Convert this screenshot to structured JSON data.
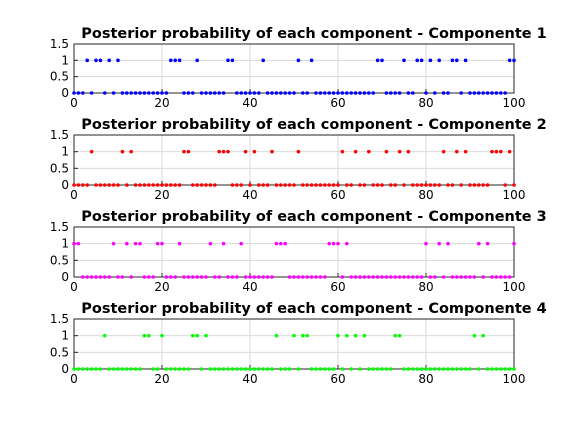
{
  "chart_data": [
    {
      "type": "scatter",
      "title": "Posterior probability of each component - Componente 1",
      "color": "#0000ff",
      "xlim": [
        0,
        100
      ],
      "ylim": [
        0,
        1.5
      ],
      "xticks": [
        "0",
        "20",
        "40",
        "60",
        "80",
        "100"
      ],
      "yticks": [
        "0",
        "0.5",
        "1",
        "1.5"
      ],
      "grid": true,
      "x": [
        0,
        1,
        2,
        3,
        4,
        5,
        6,
        7,
        8,
        9,
        10,
        11,
        12,
        13,
        14,
        15,
        16,
        17,
        18,
        19,
        20,
        21,
        22,
        23,
        24,
        25,
        26,
        27,
        28,
        29,
        30,
        31,
        32,
        33,
        34,
        35,
        36,
        37,
        38,
        39,
        40,
        41,
        42,
        43,
        44,
        45,
        46,
        47,
        48,
        49,
        50,
        51,
        52,
        53,
        54,
        55,
        56,
        57,
        58,
        59,
        60,
        61,
        62,
        63,
        64,
        65,
        66,
        67,
        68,
        69,
        70,
        71,
        72,
        73,
        74,
        75,
        76,
        77,
        78,
        79,
        80,
        81,
        82,
        83,
        84,
        85,
        86,
        87,
        88,
        89,
        90,
        91,
        92,
        93,
        94,
        95,
        96,
        97,
        98,
        99,
        100
      ],
      "values": [
        0,
        0,
        0,
        1,
        0,
        1,
        1,
        0,
        1,
        0,
        1,
        0,
        0,
        0,
        0,
        0,
        0,
        0,
        0,
        0,
        0,
        0,
        1,
        1,
        1,
        0,
        0,
        0,
        1,
        0,
        0,
        0,
        0,
        0,
        0,
        1,
        1,
        0,
        0,
        0,
        0,
        0,
        0,
        1,
        0,
        0,
        0,
        0,
        0,
        0,
        0,
        1,
        0,
        0,
        1,
        0,
        0,
        0,
        0,
        0,
        0,
        0,
        0,
        0,
        0,
        0,
        0,
        0,
        0,
        1,
        1,
        0,
        0,
        0,
        0,
        1,
        0,
        0,
        1,
        1,
        0,
        1,
        0,
        1,
        0,
        0,
        1,
        1,
        0,
        1,
        0,
        0,
        0,
        0,
        0,
        0,
        0,
        0,
        0,
        1,
        1
      ]
    },
    {
      "type": "scatter",
      "title": "Posterior probability of each component - Componente 2",
      "color": "#ff0000",
      "xlim": [
        0,
        100
      ],
      "ylim": [
        0,
        1.5
      ],
      "xticks": [
        "0",
        "20",
        "40",
        "60",
        "80",
        "100"
      ],
      "yticks": [
        "0",
        "0.5",
        "1",
        "1.5"
      ],
      "grid": true,
      "x": [
        0,
        1,
        2,
        3,
        4,
        5,
        6,
        7,
        8,
        9,
        10,
        11,
        12,
        13,
        14,
        15,
        16,
        17,
        18,
        19,
        20,
        21,
        22,
        23,
        24,
        25,
        26,
        27,
        28,
        29,
        30,
        31,
        32,
        33,
        34,
        35,
        36,
        37,
        38,
        39,
        40,
        41,
        42,
        43,
        44,
        45,
        46,
        47,
        48,
        49,
        50,
        51,
        52,
        53,
        54,
        55,
        56,
        57,
        58,
        59,
        60,
        61,
        62,
        63,
        64,
        65,
        66,
        67,
        68,
        69,
        70,
        71,
        72,
        73,
        74,
        75,
        76,
        77,
        78,
        79,
        80,
        81,
        82,
        83,
        84,
        85,
        86,
        87,
        88,
        89,
        90,
        91,
        92,
        93,
        94,
        95,
        96,
        97,
        98,
        99,
        100
      ],
      "values": [
        0,
        0,
        0,
        0,
        1,
        0,
        0,
        0,
        0,
        0,
        0,
        1,
        0,
        1,
        0,
        0,
        0,
        0,
        0,
        0,
        0,
        0,
        0,
        0,
        0,
        1,
        1,
        0,
        0,
        0,
        0,
        0,
        0,
        1,
        1,
        1,
        0,
        0,
        0,
        1,
        0,
        1,
        0,
        0,
        0,
        1,
        0,
        0,
        0,
        0,
        0,
        1,
        0,
        0,
        0,
        0,
        0,
        0,
        0,
        0,
        0,
        1,
        0,
        0,
        1,
        0,
        0,
        1,
        0,
        0,
        0,
        1,
        0,
        0,
        1,
        0,
        1,
        0,
        0,
        0,
        0,
        0,
        0,
        0,
        1,
        0,
        0,
        1,
        0,
        1,
        0,
        0,
        0,
        0,
        0,
        1,
        1,
        1,
        0,
        1,
        0
      ]
    },
    {
      "type": "scatter",
      "title": "Posterior probability of each component - Componente 3",
      "color": "#ff00ff",
      "xlim": [
        0,
        100
      ],
      "ylim": [
        0,
        1.5
      ],
      "xticks": [
        "0",
        "20",
        "40",
        "60",
        "80",
        "100"
      ],
      "yticks": [
        "0",
        "0.5",
        "1",
        "1.5"
      ],
      "grid": true,
      "x": [
        0,
        1,
        2,
        3,
        4,
        5,
        6,
        7,
        8,
        9,
        10,
        11,
        12,
        13,
        14,
        15,
        16,
        17,
        18,
        19,
        20,
        21,
        22,
        23,
        24,
        25,
        26,
        27,
        28,
        29,
        30,
        31,
        32,
        33,
        34,
        35,
        36,
        37,
        38,
        39,
        40,
        41,
        42,
        43,
        44,
        45,
        46,
        47,
        48,
        49,
        50,
        51,
        52,
        53,
        54,
        55,
        56,
        57,
        58,
        59,
        60,
        61,
        62,
        63,
        64,
        65,
        66,
        67,
        68,
        69,
        70,
        71,
        72,
        73,
        74,
        75,
        76,
        77,
        78,
        79,
        80,
        81,
        82,
        83,
        84,
        85,
        86,
        87,
        88,
        89,
        90,
        91,
        92,
        93,
        94,
        95,
        96,
        97,
        98,
        99,
        100
      ],
      "values": [
        1,
        1,
        0,
        0,
        0,
        0,
        0,
        0,
        0,
        1,
        0,
        0,
        1,
        0,
        1,
        1,
        0,
        0,
        0,
        1,
        1,
        0,
        0,
        0,
        1,
        0,
        0,
        0,
        0,
        0,
        0,
        1,
        0,
        0,
        1,
        0,
        0,
        0,
        1,
        0,
        0,
        0,
        0,
        0,
        0,
        0,
        1,
        1,
        1,
        0,
        0,
        0,
        0,
        0,
        0,
        0,
        0,
        0,
        1,
        1,
        1,
        0,
        1,
        0,
        0,
        0,
        0,
        0,
        0,
        0,
        0,
        0,
        0,
        0,
        0,
        0,
        0,
        0,
        0,
        0,
        1,
        0,
        0,
        1,
        0,
        1,
        0,
        0,
        0,
        0,
        0,
        0,
        1,
        0,
        1,
        0,
        0,
        0,
        0,
        0,
        1
      ]
    },
    {
      "type": "scatter",
      "title": "Posterior probability of each component - Componente 4",
      "color": "#00ff00",
      "xlim": [
        0,
        100
      ],
      "ylim": [
        0,
        1.5
      ],
      "xticks": [
        "0",
        "20",
        "40",
        "60",
        "80",
        "100"
      ],
      "yticks": [
        "0",
        "0.5",
        "1",
        "1.5"
      ],
      "grid": true,
      "x": [
        0,
        1,
        2,
        3,
        4,
        5,
        6,
        7,
        8,
        9,
        10,
        11,
        12,
        13,
        14,
        15,
        16,
        17,
        18,
        19,
        20,
        21,
        22,
        23,
        24,
        25,
        26,
        27,
        28,
        29,
        30,
        31,
        32,
        33,
        34,
        35,
        36,
        37,
        38,
        39,
        40,
        41,
        42,
        43,
        44,
        45,
        46,
        47,
        48,
        49,
        50,
        51,
        52,
        53,
        54,
        55,
        56,
        57,
        58,
        59,
        60,
        61,
        62,
        63,
        64,
        65,
        66,
        67,
        68,
        69,
        70,
        71,
        72,
        73,
        74,
        75,
        76,
        77,
        78,
        79,
        80,
        81,
        82,
        83,
        84,
        85,
        86,
        87,
        88,
        89,
        90,
        91,
        92,
        93,
        94,
        95,
        96,
        97,
        98,
        99,
        100
      ],
      "values": [
        0,
        0,
        0,
        0,
        0,
        0,
        0,
        1,
        0,
        0,
        0,
        0,
        0,
        0,
        0,
        0,
        1,
        1,
        0,
        0,
        1,
        0,
        0,
        0,
        0,
        0,
        0,
        1,
        1,
        0,
        1,
        0,
        0,
        0,
        0,
        0,
        0,
        0,
        0,
        0,
        0,
        0,
        0,
        0,
        0,
        0,
        1,
        0,
        0,
        0,
        1,
        0,
        1,
        1,
        0,
        0,
        0,
        0,
        0,
        0,
        1,
        0,
        1,
        0,
        1,
        0,
        1,
        0,
        0,
        0,
        0,
        0,
        0,
        1,
        1,
        0,
        0,
        0,
        0,
        0,
        0,
        0,
        0,
        0,
        0,
        0,
        0,
        0,
        0,
        0,
        0,
        1,
        0,
        1,
        0,
        0,
        0,
        0,
        0,
        0,
        0
      ]
    }
  ]
}
